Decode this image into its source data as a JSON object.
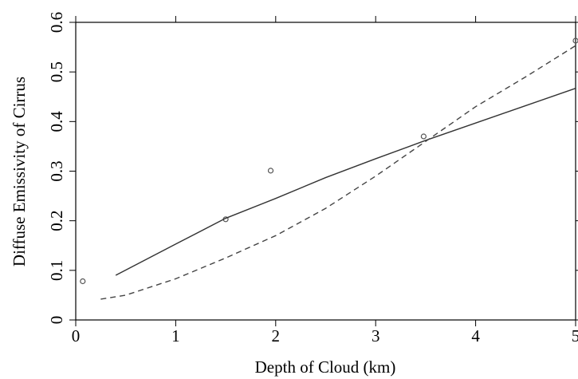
{
  "chart_data": {
    "type": "line",
    "xlabel": "Depth of Cloud (km)",
    "ylabel": "Diffuse Emissivity of Cirrus",
    "xlim": [
      0,
      5
    ],
    "ylim": [
      0,
      0.6
    ],
    "xticks": [
      0,
      1,
      2,
      3,
      4,
      5
    ],
    "yticks": [
      0,
      0.1,
      0.2,
      0.3,
      0.4,
      0.5,
      0.6
    ],
    "series": [
      {
        "mode": "markers",
        "color": "#555555",
        "x": [
          0.07,
          1.5,
          1.95,
          3.48,
          5.0
        ],
        "values": [
          0.078,
          0.203,
          0.301,
          0.37,
          0.563
        ]
      },
      {
        "mode": "line",
        "dash": false,
        "color": "#333333",
        "x": [
          0.4,
          1,
          1.5,
          2,
          2.5,
          3,
          3.5,
          4,
          4.5,
          5
        ],
        "values": [
          0.09,
          0.153,
          0.205,
          0.245,
          0.287,
          0.325,
          0.362,
          0.397,
          0.432,
          0.467
        ]
      },
      {
        "mode": "line",
        "dash": true,
        "color": "#444444",
        "x": [
          0.25,
          0.5,
          1,
          1.5,
          2,
          2.5,
          3,
          3.5,
          4,
          4.5,
          5
        ],
        "values": [
          0.042,
          0.05,
          0.083,
          0.125,
          0.17,
          0.225,
          0.29,
          0.36,
          0.43,
          0.49,
          0.553
        ]
      }
    ]
  }
}
